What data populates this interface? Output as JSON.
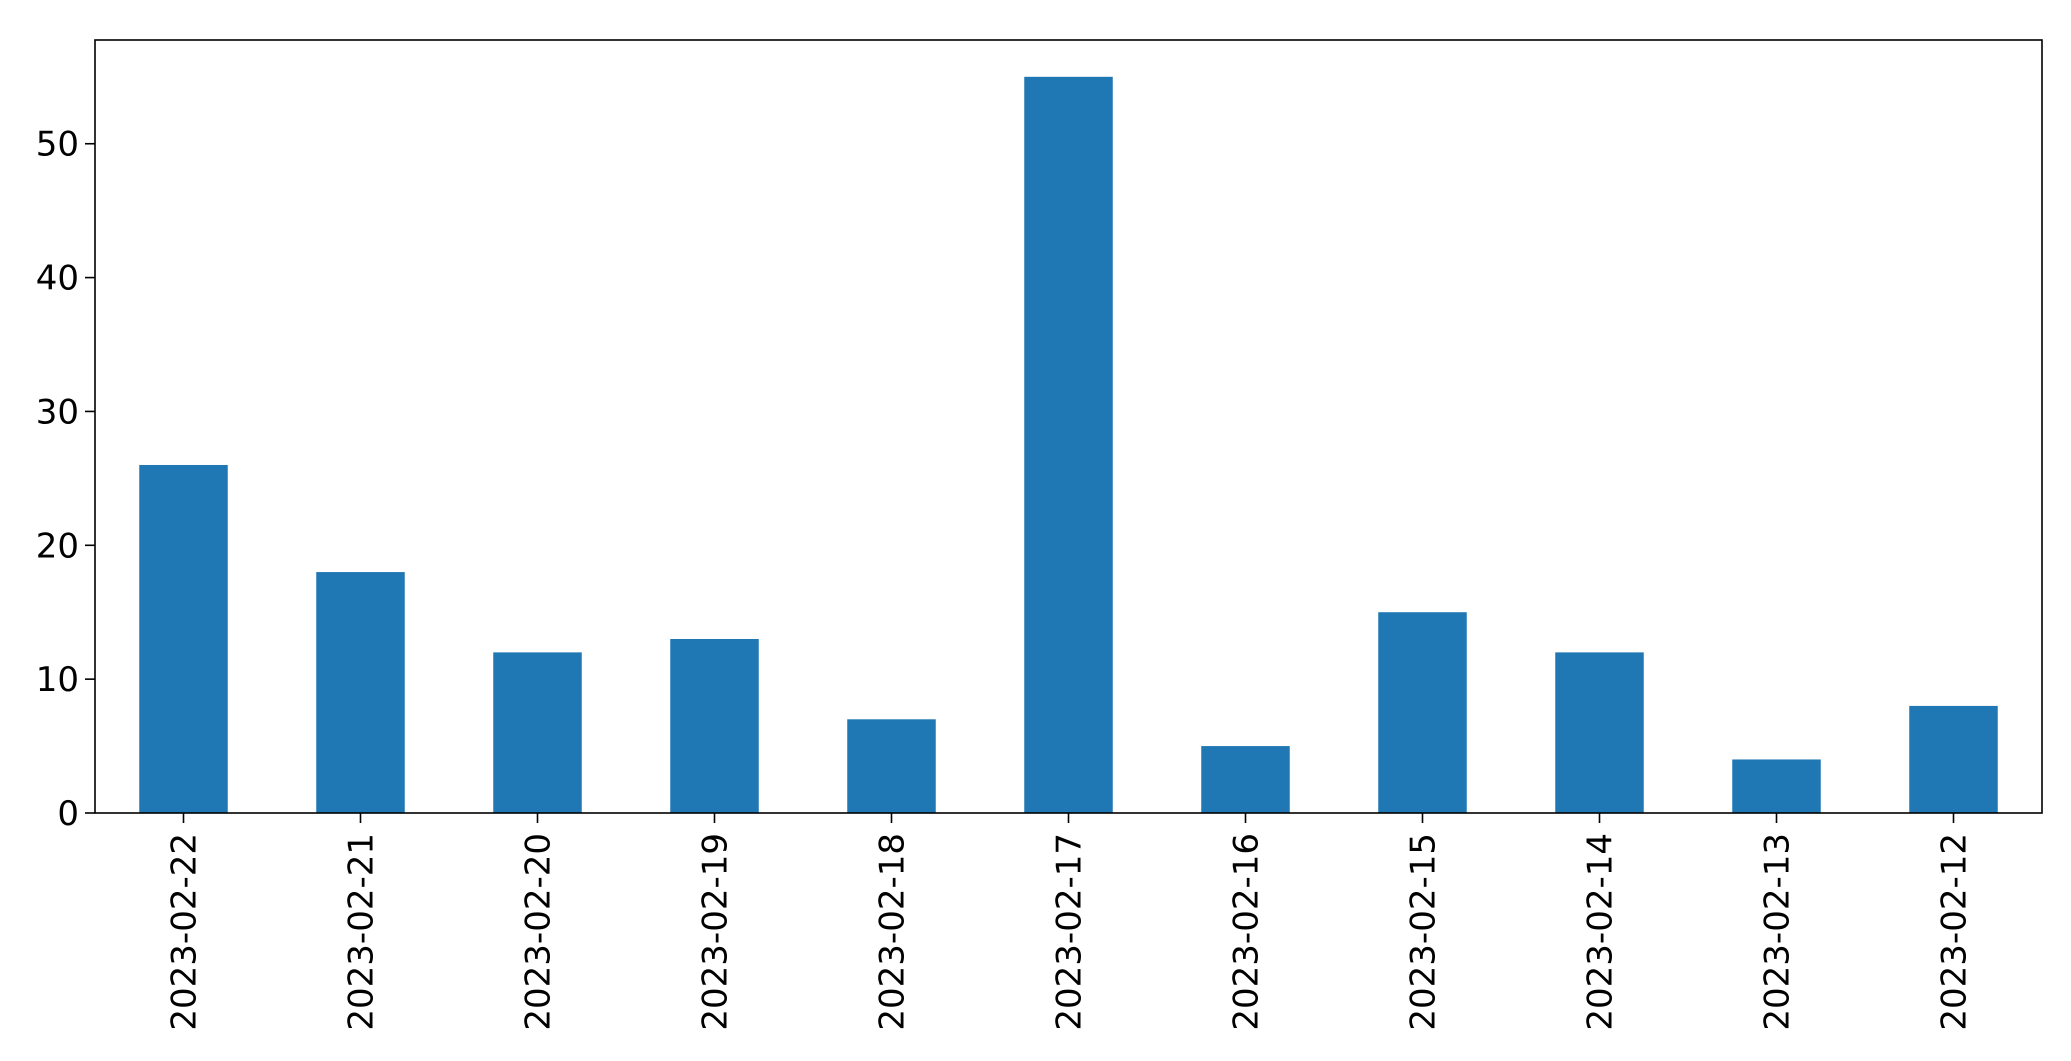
{
  "chart_data": {
    "type": "bar",
    "title": "",
    "xlabel": "",
    "ylabel": "",
    "categories": [
      "2023-02-22",
      "2023-02-21",
      "2023-02-20",
      "2023-02-19",
      "2023-02-18",
      "2023-02-17",
      "2023-02-16",
      "2023-02-15",
      "2023-02-14",
      "2023-02-13",
      "2023-02-12"
    ],
    "values": [
      26,
      18,
      12,
      13,
      7,
      55,
      5,
      15,
      12,
      4,
      8
    ],
    "ylim": [
      0,
      57.75
    ],
    "yticks": [
      0,
      10,
      20,
      30,
      40,
      50
    ],
    "bar_color": "#1f77b4",
    "grid": false,
    "legend": "none"
  }
}
